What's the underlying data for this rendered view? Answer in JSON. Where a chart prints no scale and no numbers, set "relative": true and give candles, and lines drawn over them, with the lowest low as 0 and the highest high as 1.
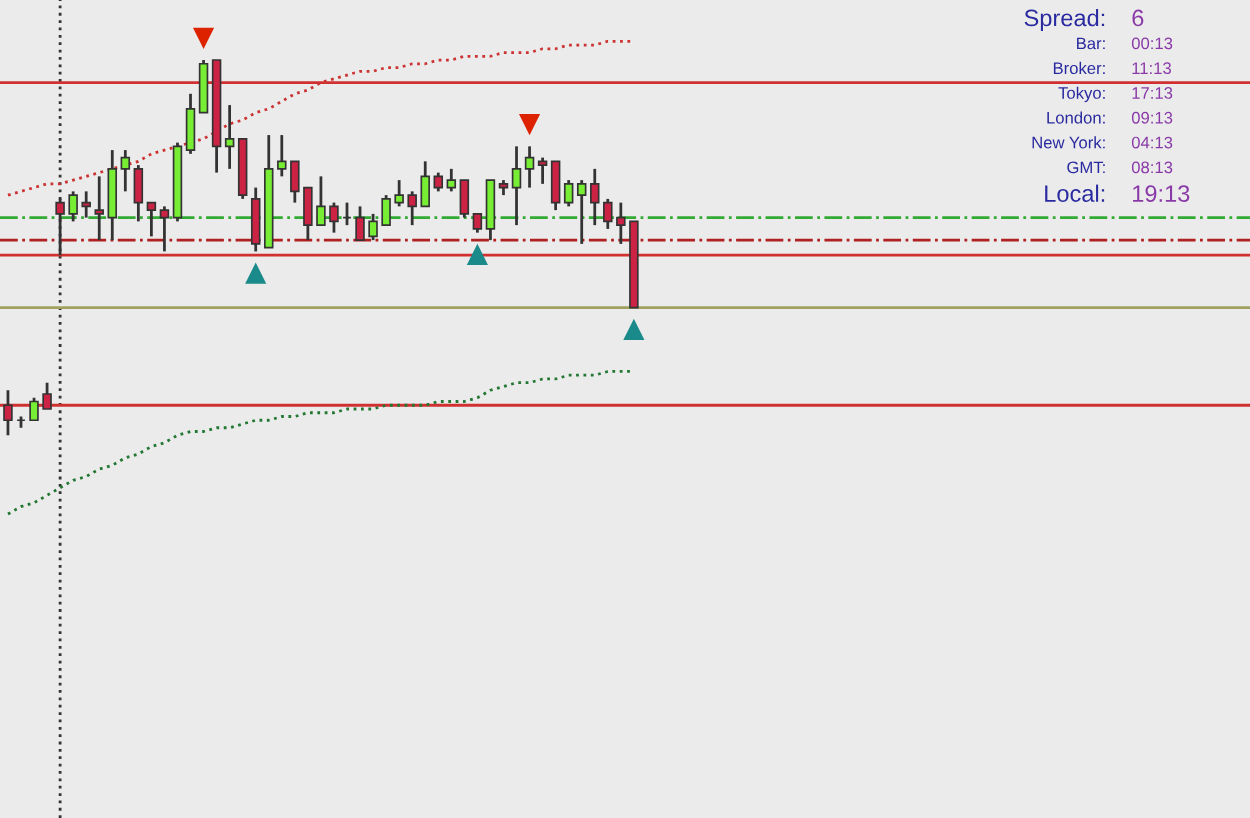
{
  "chart_data": {
    "type": "candlestick",
    "relative": true,
    "categories": [
      null,
      null,
      null,
      null,
      null,
      null,
      null,
      null,
      null,
      null,
      null,
      null,
      null,
      null,
      null,
      null,
      null,
      null,
      null,
      null,
      null,
      null,
      null,
      null,
      null,
      null,
      null,
      null,
      null,
      null,
      null,
      null,
      null,
      null,
      null,
      null,
      null,
      null,
      null,
      null,
      null,
      null,
      null,
      null,
      null,
      null,
      null,
      null,
      null
    ],
    "ohlc": [
      [
        0.08,
        0.12,
        0,
        0.04
      ],
      [
        0.04,
        0.05,
        0.02,
        0.04
      ],
      [
        0.04,
        0.1,
        0.04,
        0.09
      ],
      [
        0.11,
        0.14,
        0.07,
        0.07
      ],
      [
        0.62,
        0.63,
        0.48,
        0.59
      ],
      [
        0.59,
        0.65,
        0.57,
        0.64
      ],
      [
        0.62,
        0.65,
        0.58,
        0.61
      ],
      [
        0.6,
        0.69,
        0.52,
        0.59
      ],
      [
        0.58,
        0.76,
        0.52,
        0.71
      ],
      [
        0.71,
        0.76,
        0.65,
        0.74
      ],
      [
        0.71,
        0.72,
        0.57,
        0.62
      ],
      [
        0.62,
        0.62,
        0.53,
        0.6
      ],
      [
        0.6,
        0.61,
        0.49,
        0.58
      ],
      [
        0.58,
        0.78,
        0.57,
        0.77
      ],
      [
        0.76,
        0.91,
        0.75,
        0.87
      ],
      [
        0.86,
        1.0,
        0.86,
        0.99
      ],
      [
        1.0,
        1.0,
        0.7,
        0.77
      ],
      [
        0.77,
        0.88,
        0.71,
        0.79
      ],
      [
        0.79,
        0.79,
        0.63,
        0.64
      ],
      [
        0.63,
        0.66,
        0.49,
        0.51
      ],
      [
        0.5,
        0.8,
        0.5,
        0.71
      ],
      [
        0.71,
        0.8,
        0.69,
        0.73
      ],
      [
        0.73,
        0.73,
        0.62,
        0.65
      ],
      [
        0.66,
        0.66,
        0.52,
        0.56
      ],
      [
        0.56,
        0.69,
        0.56,
        0.61
      ],
      [
        0.61,
        0.62,
        0.54,
        0.57
      ],
      [
        0.58,
        0.62,
        0.56,
        0.58
      ],
      [
        0.58,
        0.61,
        0.52,
        0.52
      ],
      [
        0.53,
        0.59,
        0.52,
        0.57
      ],
      [
        0.56,
        0.64,
        0.56,
        0.63
      ],
      [
        0.62,
        0.68,
        0.61,
        0.64
      ],
      [
        0.64,
        0.65,
        0.56,
        0.61
      ],
      [
        0.61,
        0.73,
        0.61,
        0.69
      ],
      [
        0.69,
        0.7,
        0.65,
        0.66
      ],
      [
        0.66,
        0.71,
        0.65,
        0.68
      ],
      [
        0.68,
        0.68,
        0.58,
        0.59
      ],
      [
        0.59,
        0.59,
        0.54,
        0.55
      ],
      [
        0.55,
        0.68,
        0.52,
        0.68
      ],
      [
        0.67,
        0.68,
        0.64,
        0.66
      ],
      [
        0.66,
        0.77,
        0.56,
        0.71
      ],
      [
        0.71,
        0.77,
        0.66,
        0.74
      ],
      [
        0.73,
        0.74,
        0.67,
        0.72
      ],
      [
        0.73,
        0.73,
        0.6,
        0.62
      ],
      [
        0.62,
        0.68,
        0.61,
        0.67
      ],
      [
        0.64,
        0.68,
        0.51,
        0.67
      ],
      [
        0.67,
        0.71,
        0.56,
        0.62
      ],
      [
        0.62,
        0.63,
        0.55,
        0.57
      ],
      [
        0.58,
        0.62,
        0.51,
        0.56
      ],
      [
        0.57,
        0.57,
        0.34,
        0.34
      ]
    ],
    "colors": [
      "#cc2244",
      "#333333",
      "#77ee33",
      "#cc2244",
      "#cc2244",
      "#77ee33",
      "#cc2244",
      "#cc2244",
      "#77ee33",
      "#77ee33",
      "#cc2244",
      "#cc2244",
      "#cc2244",
      "#77ee33",
      "#77ee33",
      "#77ee33",
      "#cc2244",
      "#77ee33",
      "#cc2244",
      "#cc2244",
      "#77ee33",
      "#77ee33",
      "#cc2244",
      "#cc2244",
      "#77ee33",
      "#cc2244",
      "#333333",
      "#cc2244",
      "#77ee33",
      "#77ee33",
      "#77ee33",
      "#cc2244",
      "#77ee33",
      "#cc2244",
      "#77ee33",
      "#cc2244",
      "#cc2244",
      "#77ee33",
      "#cc2244",
      "#77ee33",
      "#77ee33",
      "#cc2244",
      "#cc2244",
      "#77ee33",
      "#77ee33",
      "#cc2244",
      "#cc2244",
      "#cc2244",
      "#cc2244"
    ],
    "series": [
      {
        "type": "line",
        "color": "#cc3333",
        "line_style": "dotted",
        "values": [
          0.64,
          0.65,
          0.66,
          0.67,
          0.67,
          0.68,
          0.69,
          0.7,
          0.71,
          0.72,
          0.73,
          0.75,
          0.76,
          0.77,
          0.78,
          0.79,
          0.81,
          0.83,
          0.84,
          0.86,
          0.87,
          0.89,
          0.91,
          0.92,
          0.94,
          0.95,
          0.96,
          0.97,
          0.97,
          0.98,
          0.98,
          0.99,
          0.99,
          1.0,
          1.0,
          1.01,
          1.01,
          1.01,
          1.02,
          1.02,
          1.02,
          1.03,
          1.03,
          1.04,
          1.04,
          1.04,
          1.05,
          1.05,
          1.05
        ]
      },
      {
        "type": "line",
        "color": "#227733",
        "line_style": "dotted",
        "values": [
          -0.21,
          -0.19,
          -0.18,
          -0.16,
          -0.14,
          -0.12,
          -0.11,
          -0.09,
          -0.08,
          -0.06,
          -0.05,
          -0.03,
          -0.02,
          0.0,
          0.01,
          0.01,
          0.02,
          0.02,
          0.03,
          0.04,
          0.04,
          0.05,
          0.05,
          0.06,
          0.06,
          0.06,
          0.07,
          0.07,
          0.07,
          0.08,
          0.08,
          0.08,
          0.08,
          0.09,
          0.09,
          0.09,
          0.1,
          0.12,
          0.13,
          0.14,
          0.14,
          0.15,
          0.15,
          0.16,
          0.16,
          0.16,
          0.17,
          0.17,
          0.17
        ]
      }
    ],
    "ref_lines": [
      {
        "axis": "y",
        "value": 0.94,
        "color": "#d03030",
        "line_style": "solid"
      },
      {
        "axis": "y",
        "value": 0.48,
        "color": "#d03030",
        "line_style": "solid"
      },
      {
        "axis": "y",
        "value": 0.52,
        "color": "#b02020",
        "line_style": "dashdot"
      },
      {
        "axis": "y",
        "value": 0.58,
        "color": "#33aa33",
        "line_style": "dashdot"
      },
      {
        "axis": "y",
        "value": 0.34,
        "color": "#a0a060",
        "line_style": "solid"
      },
      {
        "axis": "y",
        "value": 0.08,
        "color": "#d03030",
        "line_style": "solid"
      }
    ],
    "annotations": [
      "Spread:",
      "6",
      "Bar:",
      "00:13",
      "Broker:",
      "11:13",
      "Tokyo:",
      "17:13",
      "London:",
      "09:13",
      "New York:",
      "04:13",
      "GMT:",
      "08:13",
      "Local:",
      "19:13"
    ],
    "legend": false
  }
}
